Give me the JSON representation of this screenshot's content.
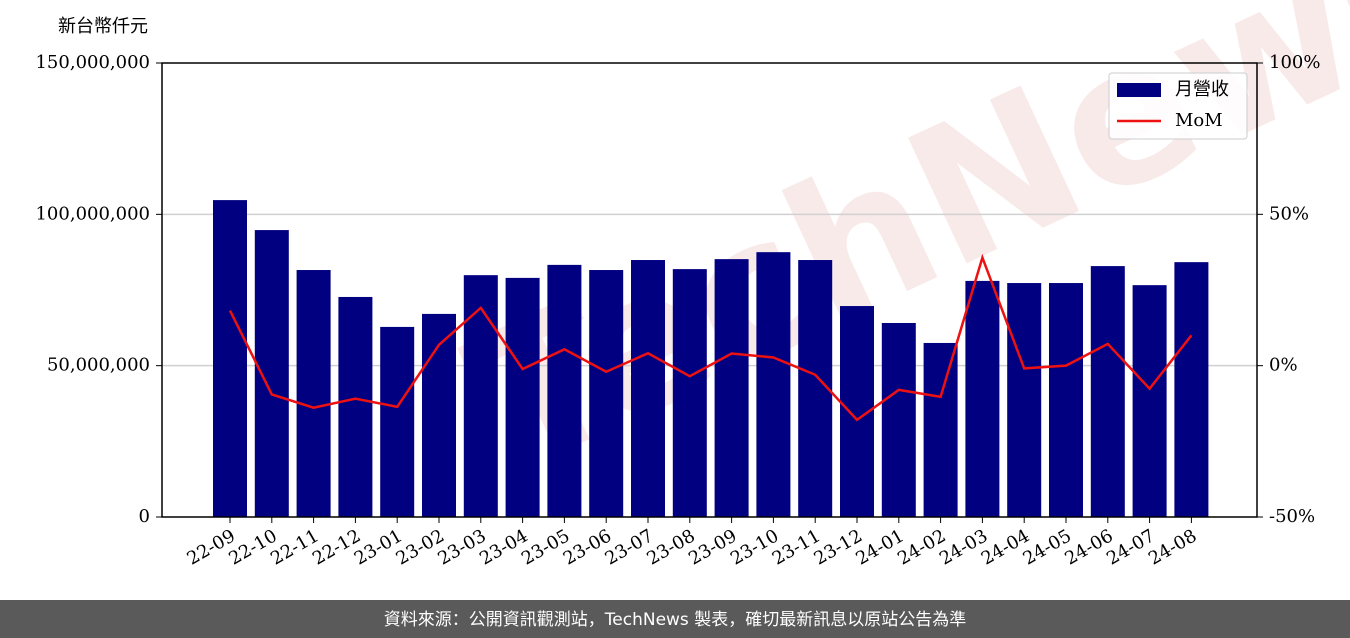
{
  "chart_data": {
    "type": "bar",
    "y_axis_label": "新台幣仟元",
    "watermark": "TechNews",
    "categories": [
      "22-09",
      "22-10",
      "22-11",
      "22-12",
      "23-01",
      "23-02",
      "23-03",
      "23-04",
      "23-05",
      "23-06",
      "23-07",
      "23-08",
      "23-09",
      "23-10",
      "23-11",
      "23-12",
      "24-01",
      "24-02",
      "24-03",
      "24-04",
      "24-05",
      "24-06",
      "24-07",
      "24-08"
    ],
    "series": [
      {
        "name": "月營收",
        "type": "bar",
        "color": "#000080",
        "values": [
          104700000,
          94800000,
          81600000,
          72700000,
          62800000,
          67100000,
          79900000,
          79000000,
          83300000,
          81600000,
          84900000,
          81900000,
          85200000,
          87500000,
          84900000,
          69700000,
          64100000,
          57500000,
          78000000,
          77300000,
          77300000,
          82900000,
          76600000,
          84200000
        ]
      },
      {
        "name": "MoM",
        "type": "line",
        "axis": "y2",
        "color": "#ee1111",
        "values": [
          18.2,
          -9.5,
          -13.9,
          -10.9,
          -13.6,
          6.9,
          19.1,
          -1.1,
          5.4,
          -2.0,
          4.1,
          -3.5,
          4.0,
          2.7,
          -3.0,
          -17.9,
          -8.0,
          -10.3,
          35.7,
          -0.9,
          0,
          7.2,
          -7.6,
          10.0
        ]
      }
    ],
    "ylim": [
      0,
      150000000
    ],
    "yticks": [
      0,
      {
        "value": 50000000,
        "label": "50,000,000"
      },
      {
        "value": 100000000,
        "label": "100,000,000"
      },
      {
        "value": 150000000,
        "label": "150,000,000"
      }
    ],
    "y2lim": [
      -50,
      100
    ],
    "y2ticks": [
      {
        "value": -50,
        "label": "-50%"
      },
      {
        "value": 0,
        "label": "0%"
      },
      {
        "value": 50,
        "label": "50%"
      },
      {
        "value": 100,
        "label": "100%"
      }
    ],
    "grid": true,
    "legend": "upper right",
    "footer": "資料來源：公開資訊觀測站，TechNews 製表，確切最新訊息以原站公告為準"
  }
}
